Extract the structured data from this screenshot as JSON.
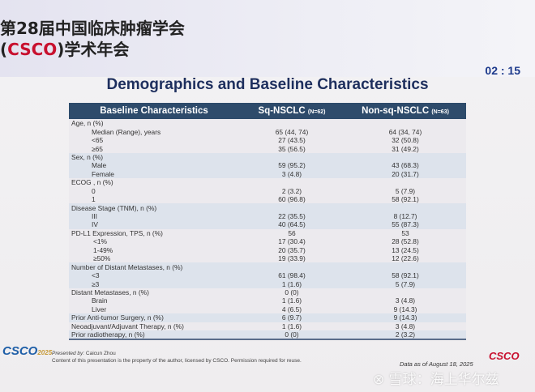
{
  "conference": {
    "line1": "第28届中国临床肿瘤学会",
    "line2_pre": "(",
    "line2_brand": "CSCO",
    "line2_post": ")学术年会"
  },
  "timer": "02 : 15",
  "title": "Demographics and Baseline Characteristics",
  "table": {
    "headers": {
      "col1": "Baseline Characteristics",
      "col2": "Sq-NSCLC",
      "col2_n": "(N=62)",
      "col3": "Non-sq-NSCLC",
      "col3_n": "(N=63)"
    },
    "rows": [
      {
        "label": "Age, n (%)",
        "sq": "",
        "nonsq": "",
        "level": 0,
        "group": 0
      },
      {
        "label": "Median (Range), years",
        "sq": "65 (44, 74)",
        "nonsq": "64 (34, 74)",
        "level": 1,
        "group": 0
      },
      {
        "label": "<65",
        "sq": "27 (43.5)",
        "nonsq": "32 (50.8)",
        "level": 1,
        "group": 0
      },
      {
        "label": "≥65",
        "sq": "35 (56.5)",
        "nonsq": "31 (49.2)",
        "level": 1,
        "group": 0
      },
      {
        "label": "Sex, n (%)",
        "sq": "",
        "nonsq": "",
        "level": 0,
        "group": 1
      },
      {
        "label": "Male",
        "sq": "59 (95.2)",
        "nonsq": "43 (68.3)",
        "level": 1,
        "group": 1
      },
      {
        "label": "Female",
        "sq": "3 (4.8)",
        "nonsq": "20 (31.7)",
        "level": 1,
        "group": 1
      },
      {
        "label": "ECOG , n (%)",
        "sq": "",
        "nonsq": "",
        "level": 0,
        "group": 0
      },
      {
        "label": "0",
        "sq": "2 (3.2)",
        "nonsq": "5 (7.9)",
        "level": 1,
        "group": 0
      },
      {
        "label": "1",
        "sq": "60 (96.8)",
        "nonsq": "58 (92.1)",
        "level": 1,
        "group": 0
      },
      {
        "label": "Disease Stage (TNM), n (%)",
        "sq": "",
        "nonsq": "",
        "level": 0,
        "group": 1
      },
      {
        "label": "III",
        "sq": "22 (35.5)",
        "nonsq": "8 (12.7)",
        "level": 1,
        "group": 1
      },
      {
        "label": "IV",
        "sq": "40 (64.5)",
        "nonsq": "55 (87.3)",
        "level": 1,
        "group": 1
      },
      {
        "label": "PD-L1 Expression, TPS, n (%)",
        "sq": "56",
        "nonsq": "53",
        "level": 0,
        "group": 0
      },
      {
        "label": "<1%",
        "sq": "17 (30.4)",
        "nonsq": "28 (52.8)",
        "level": 2,
        "group": 0
      },
      {
        "label": "1-49%",
        "sq": "20 (35.7)",
        "nonsq": "13 (24.5)",
        "level": 2,
        "group": 0
      },
      {
        "label": "≥50%",
        "sq": "19 (33.9)",
        "nonsq": "12 (22.6)",
        "level": 2,
        "group": 0
      },
      {
        "label": "Number of Distant Metastases, n (%)",
        "sq": "",
        "nonsq": "",
        "level": 0,
        "group": 1
      },
      {
        "label": "<3",
        "sq": "61 (98.4)",
        "nonsq": "58 (92.1)",
        "level": 1,
        "group": 1
      },
      {
        "label": "≥3",
        "sq": "1 (1.6)",
        "nonsq": "5 (7.9)",
        "level": 1,
        "group": 1
      },
      {
        "label": "Distant Metastases, n (%)",
        "sq": "0 (0)",
        "nonsq": "",
        "level": 0,
        "group": 0
      },
      {
        "label": "Brain",
        "sq": "1 (1.6)",
        "nonsq": "3 (4.8)",
        "level": 1,
        "group": 0
      },
      {
        "label": "Liver",
        "sq": "4 (6.5)",
        "nonsq": "9 (14.3)",
        "level": 1,
        "group": 0
      },
      {
        "label": "Prior Anti-tumor Surgery, n (%)",
        "sq": "6 (9.7)",
        "nonsq": "9 (14.3)",
        "level": 0,
        "group": 1
      },
      {
        "label": "Neoadjuvant/Adjuvant Therapy, n (%)",
        "sq": "1 (1.6)",
        "nonsq": "3 (4.8)",
        "level": 0,
        "group": 0
      },
      {
        "label": "Prior radiotherapy, n (%)",
        "sq": "0 (0)",
        "nonsq": "2 (3.2)",
        "level": 0,
        "group": 1
      }
    ]
  },
  "footer": {
    "presented_by_label": "Presented by:",
    "presenter": "Caicun Zhou",
    "copyright": "Content of this presentation is the property of the author, licensed by CSCO. Permission required for reuse.",
    "data_as_of": "Data as of August 18, 2025",
    "logo_left": "CSCO",
    "logo_left_year": "2025",
    "logo_right": "CSCO"
  },
  "watermark": "⊗ 雪球：海上华尔兹"
}
